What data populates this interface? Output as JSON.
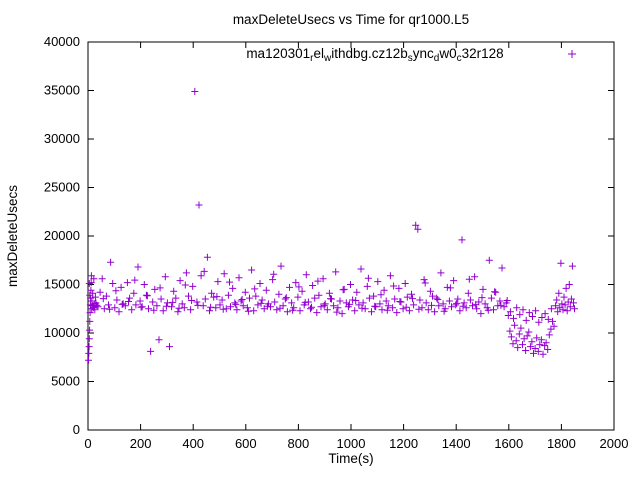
{
  "window": {
    "title": "maxDeleteUsecs vs Time for qr1000.L5"
  },
  "chart_data": {
    "type": "scatter",
    "title": "maxDeleteUsecs vs Time for qr1000.L5",
    "xlabel": "Time(s)",
    "ylabel": "maxDeleteUsecs",
    "xlim": [
      0,
      2000
    ],
    "ylim": [
      0,
      40000
    ],
    "xtick_step": 200,
    "ytick_step": 5000,
    "grid": false,
    "marker": "plus",
    "color": "#9400D3",
    "legend": {
      "position": "top-center-inside",
      "label_plain": "ma120301_rel_withdbg.cz12b_sync_dw0_c32r128",
      "segments": [
        {
          "t": "ma120301"
        },
        {
          "t": "r",
          "sub": true
        },
        {
          "t": "el"
        },
        {
          "t": "w",
          "sub": true
        },
        {
          "t": "ithdbg.cz12b"
        },
        {
          "t": "s",
          "sub": true
        },
        {
          "t": "ync"
        },
        {
          "t": "d",
          "sub": true
        },
        {
          "t": "w0"
        },
        {
          "t": "c",
          "sub": true
        },
        {
          "t": "32r128"
        }
      ]
    },
    "points": [
      [
        2,
        7200
      ],
      [
        3,
        7900
      ],
      [
        4,
        8600
      ],
      [
        5,
        9400
      ],
      [
        5,
        15100
      ],
      [
        6,
        10300
      ],
      [
        7,
        11200
      ],
      [
        7,
        13900
      ],
      [
        8,
        12100
      ],
      [
        9,
        12900
      ],
      [
        10,
        13600
      ],
      [
        11,
        14400
      ],
      [
        12,
        15200
      ],
      [
        13,
        15900
      ],
      [
        14,
        12500
      ],
      [
        15,
        13300
      ],
      [
        16,
        12800
      ],
      [
        18,
        14100
      ],
      [
        20,
        12600
      ],
      [
        22,
        15600
      ],
      [
        24,
        13000
      ],
      [
        26,
        12400
      ],
      [
        28,
        13700
      ],
      [
        30,
        13100
      ],
      [
        38,
        12700
      ],
      [
        46,
        14200
      ],
      [
        54,
        15600
      ],
      [
        62,
        12500
      ],
      [
        70,
        13800
      ],
      [
        78,
        12900
      ],
      [
        86,
        17300
      ],
      [
        94,
        15100
      ],
      [
        102,
        12600
      ],
      [
        110,
        13400
      ],
      [
        118,
        12200
      ],
      [
        126,
        14700
      ],
      [
        134,
        13000
      ],
      [
        142,
        12800
      ],
      [
        150,
        15200
      ],
      [
        158,
        13600
      ],
      [
        166,
        12400
      ],
      [
        174,
        14100
      ],
      [
        182,
        12900
      ],
      [
        190,
        16800
      ],
      [
        198,
        13300
      ],
      [
        206,
        12700
      ],
      [
        214,
        15000
      ],
      [
        222,
        13900
      ],
      [
        230,
        12500
      ],
      [
        238,
        8100
      ],
      [
        246,
        13200
      ],
      [
        254,
        14500
      ],
      [
        262,
        12800
      ],
      [
        270,
        9300
      ],
      [
        278,
        13500
      ],
      [
        286,
        12300
      ],
      [
        294,
        15800
      ],
      [
        302,
        13100
      ],
      [
        310,
        8600
      ],
      [
        318,
        12700
      ],
      [
        326,
        14300
      ],
      [
        334,
        13600
      ],
      [
        342,
        12200
      ],
      [
        350,
        15400
      ],
      [
        358,
        13000
      ],
      [
        366,
        12600
      ],
      [
        374,
        16200
      ],
      [
        382,
        13800
      ],
      [
        390,
        12400
      ],
      [
        398,
        14800
      ],
      [
        406,
        34900
      ],
      [
        414,
        13200
      ],
      [
        422,
        23200
      ],
      [
        430,
        15900
      ],
      [
        438,
        12800
      ],
      [
        446,
        13500
      ],
      [
        454,
        17800
      ],
      [
        462,
        12300
      ],
      [
        470,
        14100
      ],
      [
        478,
        13700
      ],
      [
        486,
        12600
      ],
      [
        494,
        15300
      ],
      [
        502,
        12900
      ],
      [
        510,
        13400
      ],
      [
        518,
        16100
      ],
      [
        526,
        12500
      ],
      [
        534,
        13900
      ],
      [
        542,
        12700
      ],
      [
        550,
        14600
      ],
      [
        558,
        13100
      ],
      [
        566,
        12400
      ],
      [
        574,
        15700
      ],
      [
        582,
        13300
      ],
      [
        590,
        12800
      ],
      [
        598,
        14200
      ],
      [
        606,
        12600
      ],
      [
        614,
        13600
      ],
      [
        622,
        16500
      ],
      [
        630,
        12300
      ],
      [
        638,
        13800
      ],
      [
        646,
        12900
      ],
      [
        654,
        15100
      ],
      [
        662,
        13400
      ],
      [
        670,
        12500
      ],
      [
        678,
        14400
      ],
      [
        686,
        13000
      ],
      [
        694,
        12700
      ],
      [
        702,
        15500
      ],
      [
        710,
        13200
      ],
      [
        718,
        12400
      ],
      [
        726,
        14000
      ],
      [
        734,
        16900
      ],
      [
        742,
        12800
      ],
      [
        750,
        13500
      ],
      [
        758,
        12200
      ],
      [
        766,
        14700
      ],
      [
        774,
        13100
      ],
      [
        782,
        12600
      ],
      [
        790,
        15200
      ],
      [
        798,
        13700
      ],
      [
        806,
        12300
      ],
      [
        814,
        14300
      ],
      [
        822,
        12900
      ],
      [
        830,
        16000
      ],
      [
        838,
        13200
      ],
      [
        846,
        12500
      ],
      [
        854,
        14900
      ],
      [
        862,
        13600
      ],
      [
        870,
        12100
      ],
      [
        878,
        13900
      ],
      [
        886,
        12700
      ],
      [
        894,
        15600
      ],
      [
        902,
        13000
      ],
      [
        910,
        12400
      ],
      [
        918,
        14100
      ],
      [
        926,
        13500
      ],
      [
        934,
        12800
      ],
      [
        942,
        16300
      ],
      [
        950,
        12600
      ],
      [
        958,
        13300
      ],
      [
        966,
        12000
      ],
      [
        974,
        14500
      ],
      [
        982,
        13100
      ],
      [
        990,
        12700
      ],
      [
        998,
        15000
      ],
      [
        1006,
        13400
      ],
      [
        1014,
        12300
      ],
      [
        1022,
        14200
      ],
      [
        1030,
        12900
      ],
      [
        1038,
        16600
      ],
      [
        1046,
        13100
      ],
      [
        1054,
        12500
      ],
      [
        1062,
        14800
      ],
      [
        1070,
        13600
      ],
      [
        1078,
        12200
      ],
      [
        1086,
        13800
      ],
      [
        1094,
        12700
      ],
      [
        1102,
        15300
      ],
      [
        1110,
        13000
      ],
      [
        1118,
        12400
      ],
      [
        1126,
        14400
      ],
      [
        1134,
        13300
      ],
      [
        1142,
        12800
      ],
      [
        1150,
        15900
      ],
      [
        1158,
        12600
      ],
      [
        1166,
        13500
      ],
      [
        1174,
        12100
      ],
      [
        1182,
        14600
      ],
      [
        1190,
        13200
      ],
      [
        1198,
        12500
      ],
      [
        1206,
        15100
      ],
      [
        1214,
        13700
      ],
      [
        1222,
        12300
      ],
      [
        1230,
        14000
      ],
      [
        1238,
        12900
      ],
      [
        1246,
        21100
      ],
      [
        1254,
        20700
      ],
      [
        1262,
        13400
      ],
      [
        1270,
        12600
      ],
      [
        1278,
        15500
      ],
      [
        1286,
        13100
      ],
      [
        1294,
        12400
      ],
      [
        1302,
        14300
      ],
      [
        1310,
        13800
      ],
      [
        1318,
        12200
      ],
      [
        1326,
        13600
      ],
      [
        1334,
        12800
      ],
      [
        1342,
        16200
      ],
      [
        1350,
        13000
      ],
      [
        1358,
        12500
      ],
      [
        1366,
        14700
      ],
      [
        1374,
        13300
      ],
      [
        1382,
        12700
      ],
      [
        1390,
        15400
      ],
      [
        1398,
        12900
      ],
      [
        1406,
        13500
      ],
      [
        1414,
        12300
      ],
      [
        1422,
        19600
      ],
      [
        1430,
        13100
      ],
      [
        1438,
        12600
      ],
      [
        1446,
        14100
      ],
      [
        1454,
        13400
      ],
      [
        1462,
        12800
      ],
      [
        1470,
        15800
      ],
      [
        1478,
        12500
      ],
      [
        1486,
        13200
      ],
      [
        1494,
        12000
      ],
      [
        1502,
        14500
      ],
      [
        1510,
        13000
      ],
      [
        1518,
        12600
      ],
      [
        1526,
        17500
      ],
      [
        1534,
        13600
      ],
      [
        1542,
        12400
      ],
      [
        1550,
        14200
      ],
      [
        1558,
        12800
      ],
      [
        1566,
        13300
      ],
      [
        1574,
        16700
      ],
      [
        1582,
        12700
      ],
      [
        1590,
        13100
      ],
      [
        34,
        12850
      ],
      [
        58,
        13550
      ],
      [
        82,
        12450
      ],
      [
        106,
        14350
      ],
      [
        130,
        12950
      ],
      [
        154,
        13250
      ],
      [
        178,
        15450
      ],
      [
        202,
        12650
      ],
      [
        226,
        13850
      ],
      [
        250,
        12350
      ],
      [
        274,
        14650
      ],
      [
        298,
        12750
      ],
      [
        322,
        13150
      ],
      [
        346,
        12550
      ],
      [
        370,
        14950
      ],
      [
        394,
        13350
      ],
      [
        418,
        12850
      ],
      [
        442,
        16350
      ],
      [
        466,
        12650
      ],
      [
        490,
        13750
      ],
      [
        514,
        12450
      ],
      [
        538,
        15250
      ],
      [
        562,
        12950
      ],
      [
        586,
        13450
      ],
      [
        610,
        12250
      ],
      [
        634,
        14550
      ],
      [
        658,
        13050
      ],
      [
        682,
        12750
      ],
      [
        706,
        16050
      ],
      [
        730,
        12550
      ],
      [
        754,
        13650
      ],
      [
        778,
        12350
      ],
      [
        802,
        14750
      ],
      [
        826,
        13150
      ],
      [
        850,
        12650
      ],
      [
        874,
        15350
      ],
      [
        898,
        12850
      ],
      [
        922,
        13550
      ],
      [
        946,
        12150
      ],
      [
        970,
        14450
      ],
      [
        994,
        12950
      ],
      [
        1018,
        13350
      ],
      [
        1042,
        12550
      ],
      [
        1066,
        15650
      ],
      [
        1090,
        12750
      ],
      [
        1114,
        13950
      ],
      [
        1138,
        12350
      ],
      [
        1162,
        14850
      ],
      [
        1186,
        13250
      ],
      [
        1210,
        12650
      ],
      [
        1234,
        13550
      ],
      [
        1258,
        12450
      ],
      [
        1282,
        15150
      ],
      [
        1306,
        12850
      ],
      [
        1330,
        13450
      ],
      [
        1354,
        12250
      ],
      [
        1378,
        14650
      ],
      [
        1402,
        13050
      ],
      [
        1426,
        12750
      ],
      [
        1450,
        15550
      ],
      [
        1474,
        12950
      ],
      [
        1498,
        13650
      ],
      [
        1522,
        12350
      ],
      [
        1546,
        14250
      ],
      [
        1570,
        12850
      ],
      [
        1594,
        13350
      ],
      [
        1598,
        11800
      ],
      [
        1604,
        10200
      ],
      [
        1610,
        9600
      ],
      [
        1616,
        8900
      ],
      [
        1622,
        10800
      ],
      [
        1628,
        9200
      ],
      [
        1634,
        8500
      ],
      [
        1640,
        9900
      ],
      [
        1646,
        10500
      ],
      [
        1652,
        8800
      ],
      [
        1658,
        9400
      ],
      [
        1664,
        8200
      ],
      [
        1670,
        9700
      ],
      [
        1676,
        10100
      ],
      [
        1682,
        8600
      ],
      [
        1688,
        9100
      ],
      [
        1694,
        7900
      ],
      [
        1700,
        8400
      ],
      [
        1706,
        9500
      ],
      [
        1712,
        8100
      ],
      [
        1718,
        8800
      ],
      [
        1724,
        9300
      ],
      [
        1730,
        7800
      ],
      [
        1736,
        8700
      ],
      [
        1742,
        9000
      ],
      [
        1748,
        8300
      ],
      [
        1754,
        9800
      ],
      [
        1760,
        10400
      ],
      [
        1766,
        11200
      ],
      [
        1772,
        10700
      ],
      [
        1606,
        12200
      ],
      [
        1618,
        11500
      ],
      [
        1630,
        12600
      ],
      [
        1642,
        11900
      ],
      [
        1654,
        12400
      ],
      [
        1666,
        11300
      ],
      [
        1678,
        12100
      ],
      [
        1690,
        11700
      ],
      [
        1702,
        12300
      ],
      [
        1714,
        11100
      ],
      [
        1726,
        11600
      ],
      [
        1738,
        12000
      ],
      [
        1750,
        11400
      ],
      [
        1762,
        12500
      ],
      [
        1778,
        12800
      ],
      [
        1782,
        13400
      ],
      [
        1786,
        12200
      ],
      [
        1790,
        14100
      ],
      [
        1794,
        12600
      ],
      [
        1798,
        17200
      ],
      [
        1802,
        13000
      ],
      [
        1806,
        12400
      ],
      [
        1810,
        13700
      ],
      [
        1814,
        12900
      ],
      [
        1818,
        14600
      ],
      [
        1822,
        12300
      ],
      [
        1826,
        13200
      ],
      [
        1830,
        15000
      ],
      [
        1834,
        12700
      ],
      [
        1838,
        13500
      ],
      [
        1842,
        16900
      ],
      [
        1846,
        13100
      ],
      [
        1850,
        12500
      ]
    ]
  }
}
